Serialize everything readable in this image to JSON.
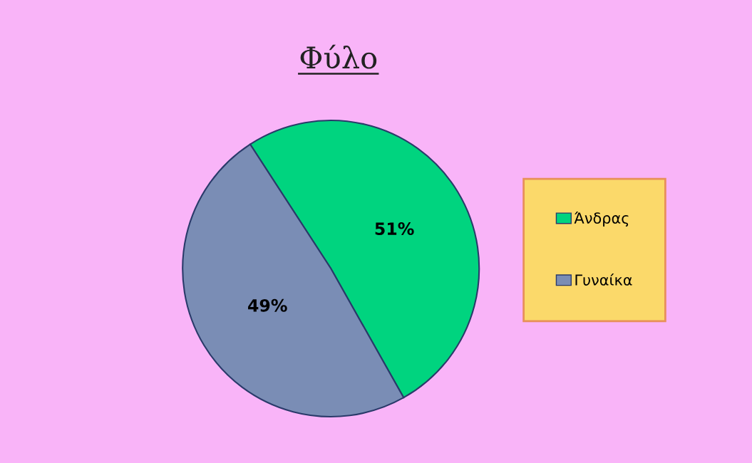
{
  "chart_data": {
    "type": "pie",
    "title": "Φύλο",
    "categories": [
      "Άνδρας",
      "Γυναίκα"
    ],
    "values": [
      51,
      49
    ],
    "value_labels": [
      "51%",
      "49%"
    ],
    "colors": [
      "#00d47f",
      "#7a8db5"
    ],
    "legend": "right"
  }
}
